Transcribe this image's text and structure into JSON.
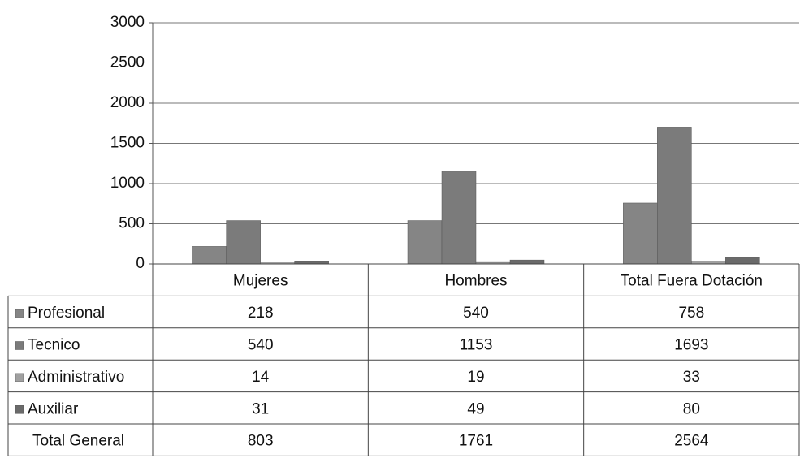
{
  "chart_data": {
    "type": "bar",
    "categories": [
      "Mujeres",
      "Hombres",
      "Total Fuera Dotación"
    ],
    "series": [
      {
        "name": "Profesional",
        "color": "#858585",
        "values": [
          218,
          540,
          758
        ]
      },
      {
        "name": "Tecnico",
        "color": "#7b7b7b",
        "values": [
          540,
          1153,
          1693
        ]
      },
      {
        "name": "Administrativo",
        "color": "#a0a0a0",
        "values": [
          14,
          19,
          33
        ]
      },
      {
        "name": "Auxiliar",
        "color": "#6a6a6a",
        "values": [
          31,
          49,
          80
        ]
      }
    ],
    "total_row": {
      "label": "Total General",
      "values": [
        803,
        1761,
        2564
      ]
    },
    "ylim": [
      0,
      3000
    ],
    "yticks": [
      0,
      500,
      1000,
      1500,
      2000,
      2500,
      3000
    ],
    "grid": true
  }
}
